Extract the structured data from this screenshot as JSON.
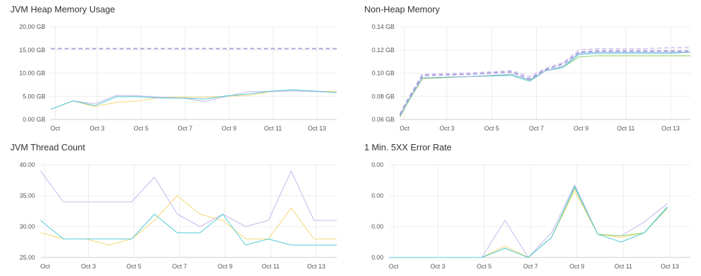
{
  "chart_data": [
    {
      "type": "line",
      "title": "JVM Heap Memory Usage",
      "xlabel": "",
      "ylabel": "",
      "x": [
        0,
        1,
        2,
        3,
        4,
        5,
        6,
        7,
        8,
        9,
        10,
        11,
        12,
        13
      ],
      "x_ticks": [
        {
          "x": 0.2,
          "label": "Oct"
        },
        {
          "x": 2.1,
          "label": "Oct 3"
        },
        {
          "x": 4.1,
          "label": "Oct 5"
        },
        {
          "x": 6.1,
          "label": "Oct 7"
        },
        {
          "x": 8.1,
          "label": "Oct 9"
        },
        {
          "x": 10.1,
          "label": "Oct 11"
        },
        {
          "x": 12.1,
          "label": "Oct 13"
        }
      ],
      "xlim": [
        0,
        13
      ],
      "y_ticks": [
        {
          "v": 0,
          "label": "0.00 GB"
        },
        {
          "v": 5,
          "label": "5.00 GB"
        },
        {
          "v": 10,
          "label": "10.00 GB"
        },
        {
          "v": 15,
          "label": "15.00 GB"
        },
        {
          "v": 20,
          "label": "20.00 GB"
        }
      ],
      "ylim": [
        0,
        20
      ],
      "grid": true,
      "series": [
        {
          "color": "#b3a8e0",
          "dashed": true,
          "width": 2,
          "values": [
            15.3,
            15.3,
            15.3,
            15.3,
            15.3,
            15.3,
            15.3,
            15.3,
            15.3,
            15.3,
            15.3,
            15.3,
            15.3,
            15.3
          ]
        },
        {
          "color": "#f5d76e",
          "dashed": false,
          "width": 1,
          "values": [
            2.2,
            4.0,
            2.8,
            3.7,
            4.0,
            4.8,
            4.8,
            4.8,
            5.0,
            5.2,
            6.0,
            6.2,
            6.0,
            6.1
          ]
        },
        {
          "color": "#c3b8ea",
          "dashed": false,
          "width": 1,
          "values": [
            2.2,
            4.0,
            3.4,
            5.2,
            5.1,
            4.8,
            4.6,
            3.9,
            5.0,
            6.0,
            6.0,
            6.2,
            6.0,
            5.8
          ]
        },
        {
          "color": "#4fc9d8",
          "dashed": false,
          "width": 1,
          "values": [
            2.2,
            4.0,
            3.0,
            4.9,
            4.9,
            4.6,
            4.6,
            4.4,
            5.1,
            5.5,
            6.1,
            6.4,
            6.1,
            5.8
          ]
        }
      ]
    },
    {
      "type": "line",
      "title": "Non-Heap Memory",
      "xlabel": "",
      "ylabel": "",
      "x": [
        0,
        0.3,
        1.0,
        3.0,
        5.0,
        5.8,
        6.5,
        7.3,
        8.0,
        8.8,
        10.0,
        11.0,
        12.0,
        13.0
      ],
      "x_ticks": [
        {
          "x": 0.2,
          "label": "Oct"
        },
        {
          "x": 2.1,
          "label": "Oct 3"
        },
        {
          "x": 4.1,
          "label": "Oct 5"
        },
        {
          "x": 6.1,
          "label": "Oct 7"
        },
        {
          "x": 8.1,
          "label": "Oct 9"
        },
        {
          "x": 10.1,
          "label": "Oct 11"
        },
        {
          "x": 12.1,
          "label": "Oct 13"
        }
      ],
      "xlim": [
        0,
        13
      ],
      "y_ticks": [
        {
          "v": 0.06,
          "label": "0.06 GB"
        },
        {
          "v": 0.08,
          "label": "0.08 GB"
        },
        {
          "v": 0.1,
          "label": "0.10 GB"
        },
        {
          "v": 0.12,
          "label": "0.12 GB"
        },
        {
          "v": 0.14,
          "label": "0.14 GB"
        }
      ],
      "ylim": [
        0.06,
        0.14
      ],
      "grid": true,
      "series": [
        {
          "color": "#d8c9ef",
          "dashed": true,
          "width": 2,
          "values": [
            0.065,
            0.076,
            0.099,
            0.1,
            0.102,
            0.097,
            0.104,
            0.109,
            0.12,
            0.121,
            0.121,
            0.121,
            0.122,
            0.122
          ]
        },
        {
          "color": "#a89de0",
          "dashed": true,
          "width": 2,
          "values": [
            0.064,
            0.075,
            0.098,
            0.099,
            0.101,
            0.095,
            0.103,
            0.108,
            0.118,
            0.119,
            0.119,
            0.119,
            0.119,
            0.119
          ]
        },
        {
          "color": "#f5d76e",
          "dashed": false,
          "width": 1,
          "values": [
            0.062,
            0.073,
            0.096,
            0.097,
            0.098,
            0.093,
            0.102,
            0.105,
            0.114,
            0.115,
            0.115,
            0.115,
            0.115,
            0.115
          ]
        },
        {
          "color": "#8fd37d",
          "dashed": false,
          "width": 1,
          "values": [
            0.062,
            0.073,
            0.095,
            0.097,
            0.099,
            0.094,
            0.102,
            0.105,
            0.114,
            0.115,
            0.115,
            0.115,
            0.115,
            0.115
          ]
        },
        {
          "color": "#4fc9d8",
          "dashed": false,
          "width": 1,
          "values": [
            0.063,
            0.074,
            0.096,
            0.097,
            0.098,
            0.093,
            0.102,
            0.105,
            0.116,
            0.117,
            0.117,
            0.117,
            0.117,
            0.118
          ]
        },
        {
          "color": "#9ab0e0",
          "dashed": false,
          "width": 1,
          "values": [
            0.063,
            0.074,
            0.096,
            0.097,
            0.099,
            0.094,
            0.102,
            0.106,
            0.117,
            0.118,
            0.118,
            0.118,
            0.118,
            0.118
          ]
        }
      ]
    },
    {
      "type": "line",
      "title": "JVM Thread Count",
      "xlabel": "",
      "ylabel": "",
      "x": [
        0,
        1,
        2,
        3,
        4,
        5,
        6,
        7,
        8,
        9,
        10,
        11,
        12,
        13
      ],
      "x_ticks": [
        {
          "x": 0.2,
          "label": "Oct"
        },
        {
          "x": 2.1,
          "label": "Oct 3"
        },
        {
          "x": 4.1,
          "label": "Oct 5"
        },
        {
          "x": 6.1,
          "label": "Oct 7"
        },
        {
          "x": 8.1,
          "label": "Oct 9"
        },
        {
          "x": 10.1,
          "label": "Oct 11"
        },
        {
          "x": 12.1,
          "label": "Oct 13"
        }
      ],
      "xlim": [
        0,
        13
      ],
      "y_ticks": [
        {
          "v": 25,
          "label": "25.00"
        },
        {
          "v": 30,
          "label": "30.00"
        },
        {
          "v": 35,
          "label": "35.00"
        },
        {
          "v": 40,
          "label": "40.00"
        }
      ],
      "ylim": [
        25,
        40
      ],
      "grid": true,
      "series": [
        {
          "color": "#c3b8ea",
          "dashed": false,
          "width": 1,
          "values": [
            39,
            34,
            34,
            34,
            34,
            38,
            32,
            30,
            32,
            30,
            31,
            39,
            31,
            31
          ]
        },
        {
          "color": "#f5d76e",
          "dashed": false,
          "width": 1,
          "values": [
            29,
            28,
            28,
            27,
            28,
            31,
            35,
            32,
            31,
            28,
            28,
            33,
            28,
            28
          ]
        },
        {
          "color": "#4fc9d8",
          "dashed": false,
          "width": 1,
          "values": [
            31,
            28,
            28,
            28,
            28,
            32,
            29,
            29,
            32,
            27,
            28,
            27,
            27,
            27
          ]
        }
      ]
    },
    {
      "type": "line",
      "title": "1 Min. 5XX Error Rate",
      "xlabel": "",
      "ylabel": "",
      "x": [
        0,
        1,
        2,
        3,
        4,
        5,
        6,
        7,
        8,
        9,
        10,
        11,
        12,
        13
      ],
      "x_ticks": [
        {
          "x": 0.2,
          "label": "Oct"
        },
        {
          "x": 2.1,
          "label": "Oct 3"
        },
        {
          "x": 4.1,
          "label": "Oct 5"
        },
        {
          "x": 6.1,
          "label": "Oct 7"
        },
        {
          "x": 8.1,
          "label": "Oct 9"
        },
        {
          "x": 10.1,
          "label": "Oct 11"
        },
        {
          "x": 12.1,
          "label": "Oct 13"
        }
      ],
      "xlim": [
        0,
        13
      ],
      "y_ticks": [
        {
          "v": 0,
          "label": "0.00"
        },
        {
          "v": 1,
          "label": "0.00"
        },
        {
          "v": 2,
          "label": "0.00"
        },
        {
          "v": 3,
          "label": "0.00"
        }
      ],
      "ylim": [
        0,
        3
      ],
      "grid": true,
      "series": [
        {
          "color": "#c3b8ea",
          "dashed": false,
          "width": 1,
          "values": [
            0,
            0,
            0,
            0,
            0,
            1.2,
            0,
            0.8,
            2.35,
            0.75,
            0.7,
            1.15,
            1.75,
            null
          ]
        },
        {
          "color": "#f5d76e",
          "dashed": false,
          "width": 1,
          "values": [
            0,
            0,
            0,
            0,
            0,
            0.37,
            0,
            0.65,
            2.15,
            0.75,
            0.65,
            0.8,
            1.6,
            null
          ]
        },
        {
          "color": "#8fd37d",
          "dashed": false,
          "width": 1,
          "values": [
            0,
            0,
            0,
            0,
            0,
            0.3,
            0,
            0.65,
            2.25,
            0.75,
            0.7,
            0.8,
            1.6,
            null
          ]
        },
        {
          "color": "#4fc9d8",
          "dashed": false,
          "width": 1,
          "values": [
            0,
            0,
            0,
            0,
            0,
            0.3,
            0,
            0.65,
            2.3,
            0.75,
            0.5,
            0.8,
            1.65,
            null
          ]
        }
      ]
    }
  ]
}
